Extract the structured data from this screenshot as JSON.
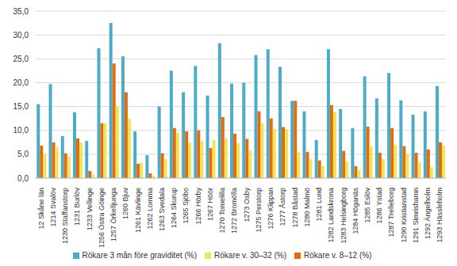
{
  "chart_data": {
    "type": "bar",
    "categories": [
      "12 Skåne län",
      "1214 Svalöv",
      "1230 Staffanstorp",
      "1231 Burlöv",
      "1233 Vellinge",
      "1256 Östra Göinge",
      "1257 Örkelljunga",
      "1260 Bjuv",
      "1261 Kävlinge",
      "1262 Lomma",
      "1263 Svedala",
      "1264 Skurup",
      "1265 Sjöbo",
      "1266 Hörby",
      "1267 Höör",
      "1270 Tomelilla",
      "1272 Bromölla",
      "1273 Osby",
      "1275 Perstorp",
      "1276 Klippan",
      "1277 Åstorp",
      "1278 Båstad",
      "1280 Malmö",
      "1281 Lund",
      "1282 Landskrona",
      "1283 Helsingborg",
      "1284 Höganäs",
      "1285 Eslöv",
      "1286 Ystad",
      "1287 Trelleborg",
      "1290 Kristianstad",
      "1291 Simrishamn",
      "1292 Ängelholm",
      "1293 Hässleholm"
    ],
    "series": [
      {
        "name": "Rökare 3 mån före graviditet (%)",
        "color": "#4bacc6",
        "values": [
          15.5,
          19.7,
          8.8,
          13.8,
          7.8,
          27.2,
          32.5,
          25.5,
          9.8,
          4.8,
          15.0,
          22.5,
          18.0,
          23.5,
          17.3,
          28.3,
          19.8,
          20.0,
          25.8,
          27.0,
          23.3,
          16.2,
          14.0,
          8.0,
          27.0,
          14.5,
          10.5,
          21.3,
          16.7,
          22.0,
          16.3,
          13.3,
          14.0,
          19.3
        ]
      },
      {
        "name": "Rökare v. 8–12 (%)",
        "color": "#e46c0a",
        "values": [
          6.8,
          7.5,
          5.2,
          8.3,
          1.5,
          11.5,
          24.0,
          18.0,
          3.0,
          1.0,
          5.2,
          10.5,
          9.8,
          10.0,
          6.3,
          12.8,
          9.3,
          8.2,
          14.0,
          12.5,
          10.7,
          16.2,
          5.5,
          3.7,
          15.3,
          5.7,
          2.5,
          10.8,
          5.3,
          10.5,
          6.7,
          5.3,
          6.0,
          7.5
        ]
      },
      {
        "name": "Rökare v. 30–32 (%)",
        "color": "#f2e35a",
        "values": [
          5.0,
          6.5,
          4.5,
          7.5,
          0.7,
          11.5,
          15.0,
          12.5,
          3.2,
          0.5,
          4.0,
          9.5,
          7.5,
          7.8,
          8.0,
          8.3,
          7.3,
          5.8,
          11.5,
          10.3,
          10.3,
          5.5,
          4.0,
          2.5,
          13.8,
          3.5,
          1.7,
          6.7,
          4.0,
          7.0,
          5.0,
          3.3,
          2.3,
          6.8
        ]
      }
    ],
    "ylim": [
      0,
      35
    ],
    "yticks": [
      {
        "value": 0,
        "label": "0,0"
      },
      {
        "value": 5,
        "label": "5,0"
      },
      {
        "value": 10,
        "label": "10,0"
      },
      {
        "value": 15,
        "label": "15,0"
      },
      {
        "value": 20,
        "label": "20,0"
      },
      {
        "value": 25,
        "label": "25,0"
      },
      {
        "value": 30,
        "label": "30,0"
      },
      {
        "value": 35,
        "label": "35,0"
      }
    ],
    "grid": true,
    "legend": "bottom"
  }
}
